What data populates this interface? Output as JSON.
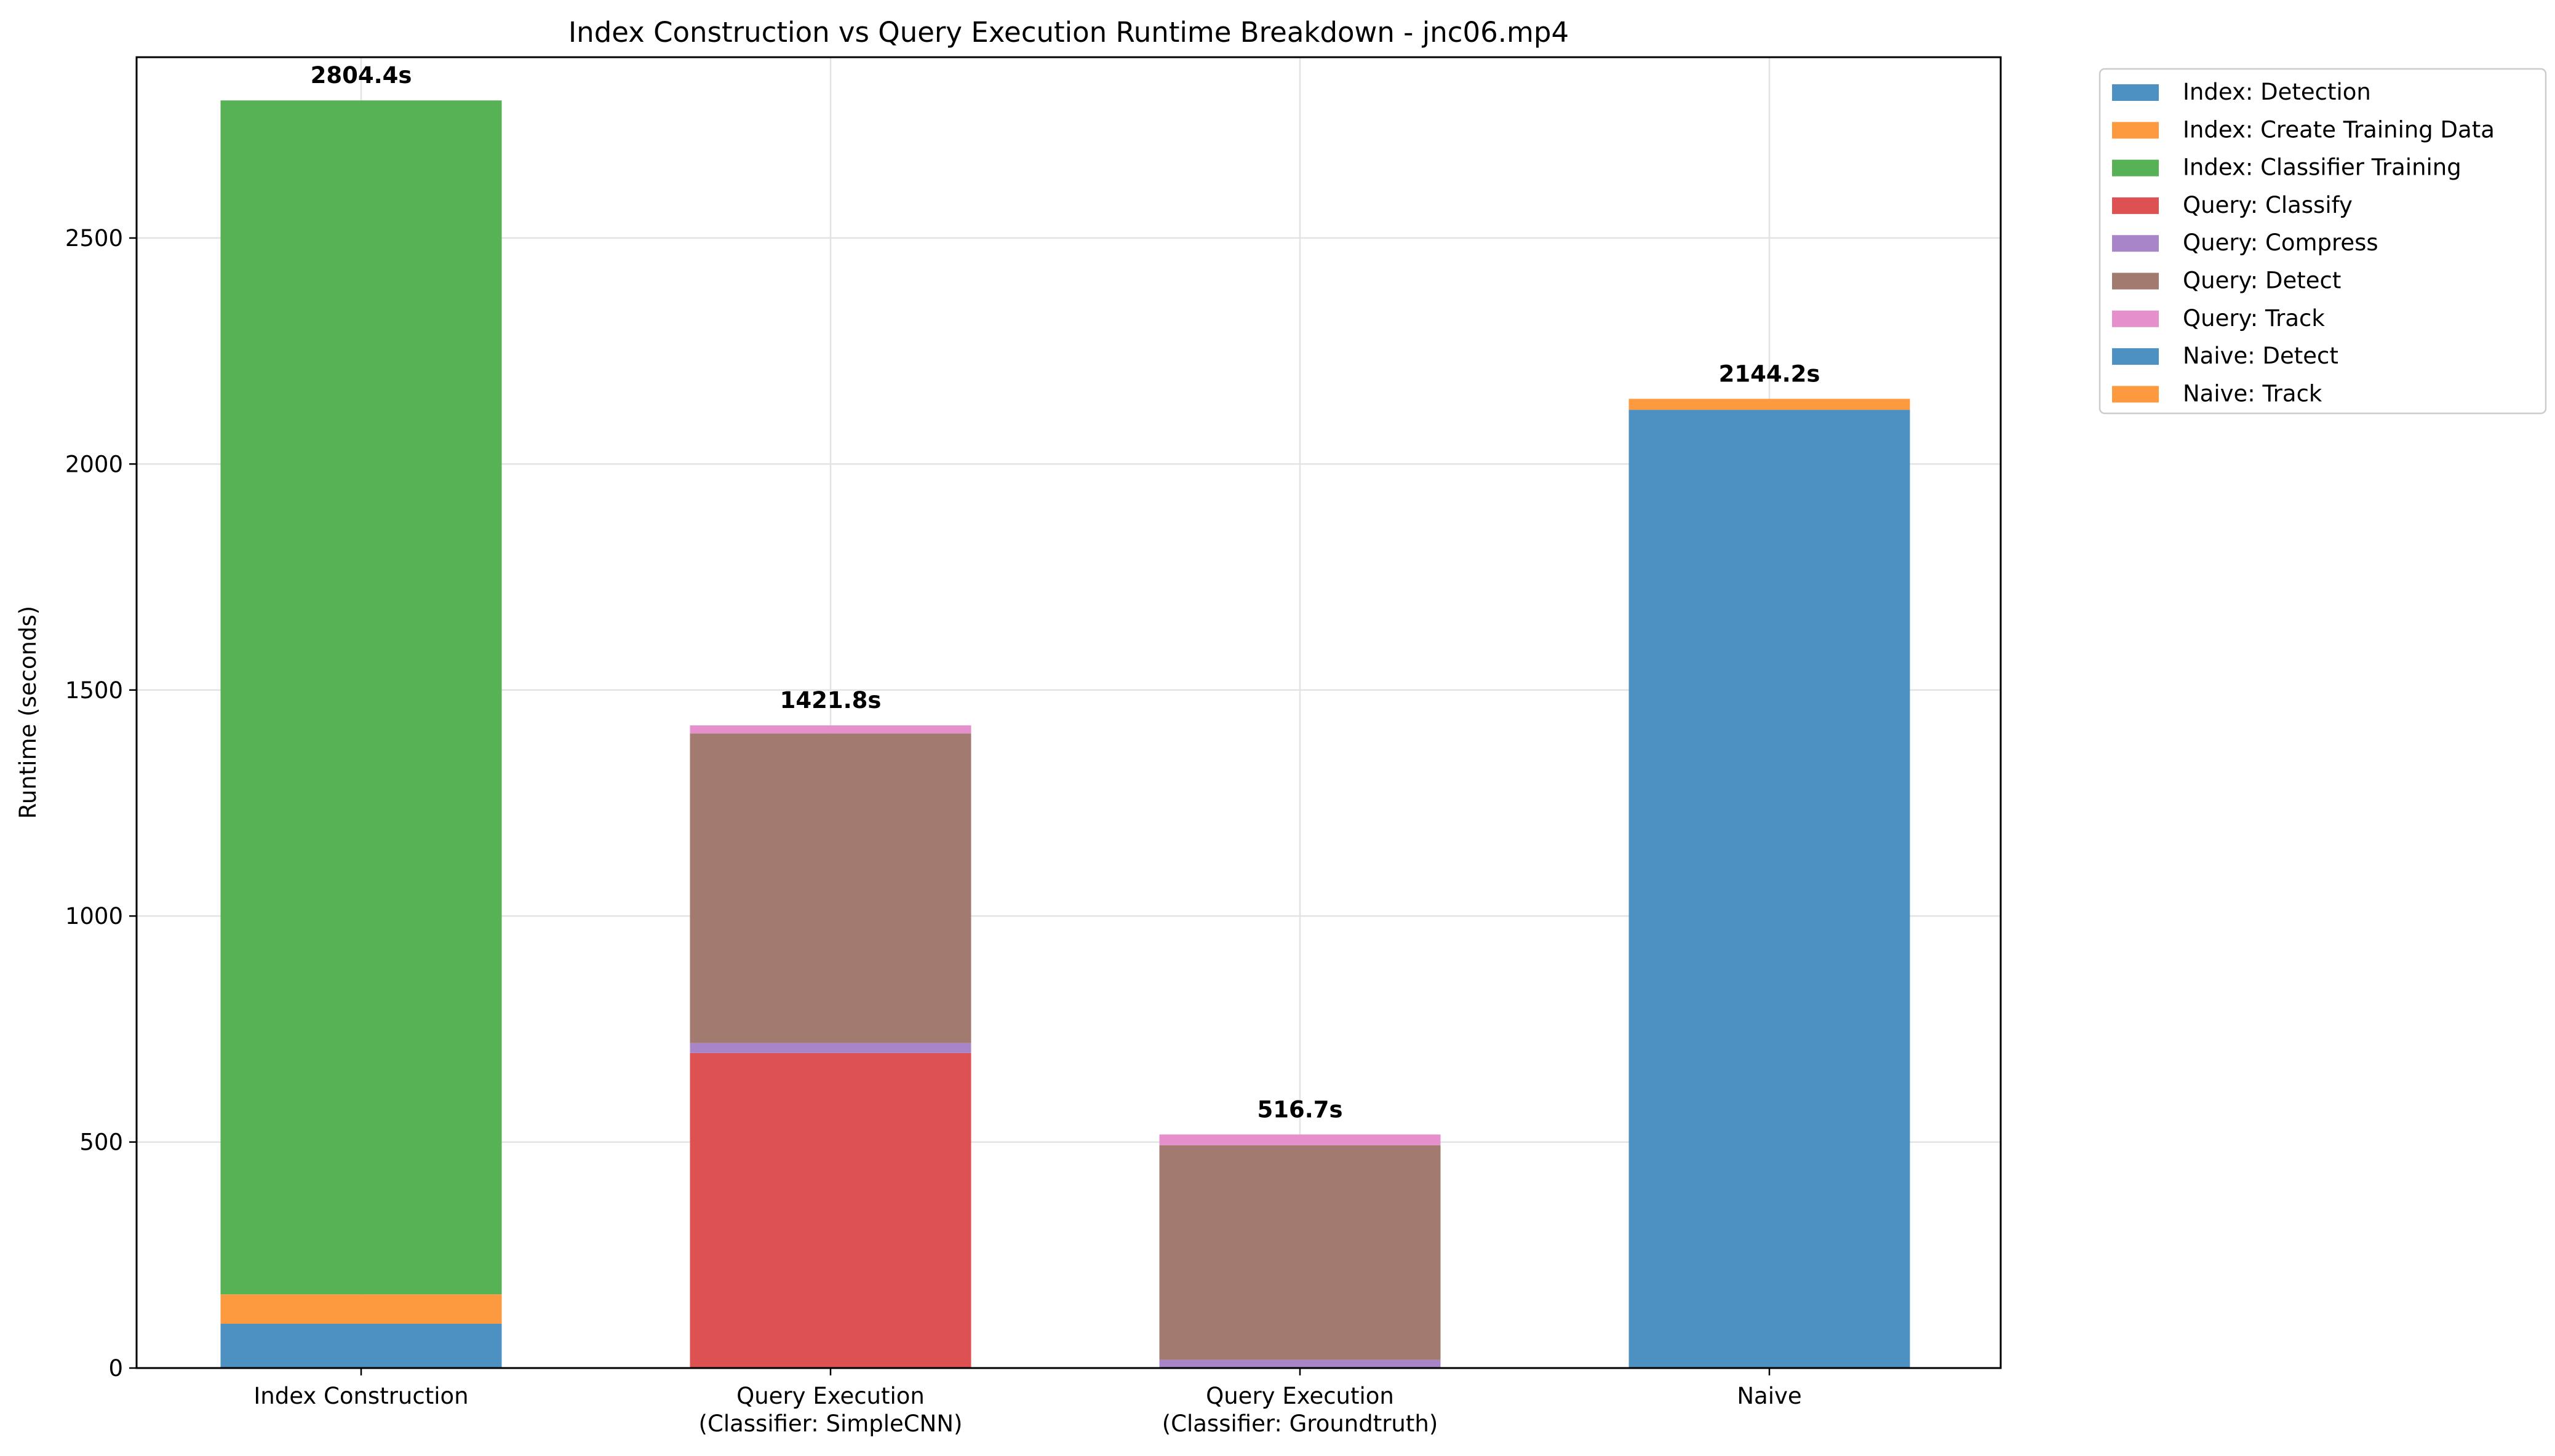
{
  "chart_data": {
    "type": "bar",
    "stacked": true,
    "title": "Index Construction vs Query Execution Runtime Breakdown - jnc06.mp4",
    "xlabel": "",
    "ylabel": "Runtime (seconds)",
    "ylim": [
      0,
      2900
    ],
    "yticks": [
      0,
      500,
      1000,
      1500,
      2000,
      2500
    ],
    "grid": true,
    "legend_position": "outside-top-right",
    "categories": [
      [
        "Index Construction"
      ],
      [
        "Query Execution",
        "(Classifier: SimpleCNN)"
      ],
      [
        "Query Execution",
        "(Classifier: Groundtruth)"
      ],
      [
        "Naive"
      ]
    ],
    "series": [
      {
        "name": "Index: Detection",
        "color": "#4c91c2",
        "values": [
          98,
          0,
          0,
          0
        ]
      },
      {
        "name": "Index: Create Training Data",
        "color": "#fd9a40",
        "values": [
          65,
          0,
          0,
          0
        ]
      },
      {
        "name": "Index: Classifier Training",
        "color": "#57b256",
        "values": [
          2641.4,
          0,
          0,
          0
        ]
      },
      {
        "name": "Query: Classify",
        "color": "#de5152",
        "values": [
          0,
          697,
          0,
          0
        ]
      },
      {
        "name": "Query: Compress",
        "color": "#a885c8",
        "values": [
          0,
          22,
          18,
          0
        ]
      },
      {
        "name": "Query: Detect",
        "color": "#a37a6f",
        "values": [
          0,
          685,
          475,
          0
        ]
      },
      {
        "name": "Query: Track",
        "color": "#e590cc",
        "values": [
          0,
          17.8,
          23.7,
          0
        ]
      },
      {
        "name": "Naive: Detect",
        "color": "#4c91c2",
        "values": [
          0,
          0,
          0,
          2120
        ]
      },
      {
        "name": "Naive: Track",
        "color": "#fd9a40",
        "values": [
          0,
          0,
          0,
          24.2
        ]
      }
    ],
    "totals": [
      "2804.4s",
      "1421.8s",
      "516.7s",
      "2144.2s"
    ]
  }
}
